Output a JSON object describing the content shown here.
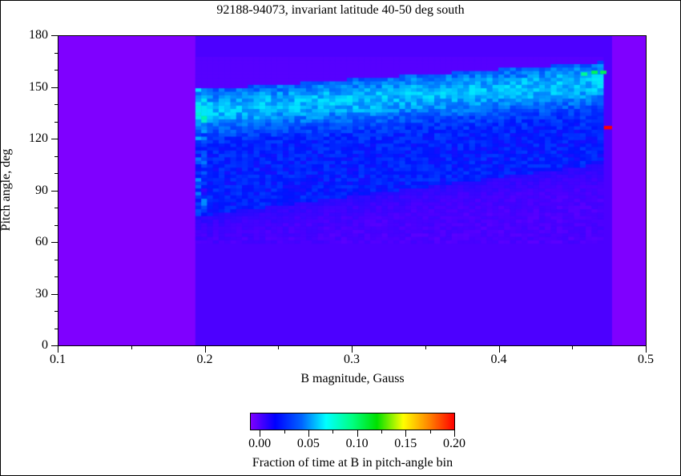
{
  "chart_data": {
    "type": "heatmap",
    "title": "92188-94073, invariant latitude 40-50 deg south",
    "xlabel": "B magnitude, Gauss",
    "ylabel": "Pitch angle, deg",
    "xlim": [
      0.1,
      0.5
    ],
    "ylim": [
      0,
      180
    ],
    "x_ticks": [
      "0.1",
      "0.2",
      "0.3",
      "0.4",
      "0.5"
    ],
    "y_ticks": [
      "0",
      "30",
      "60",
      "90",
      "120",
      "150",
      "180"
    ],
    "colorbar": {
      "label": "Fraction of time at B in pitch-angle bin",
      "range": [
        -0.01,
        0.2
      ],
      "ticks": [
        "0.00",
        "0.05",
        "0.10",
        "0.15",
        "0.20"
      ],
      "colormap": "rainbow (violet-blue-cyan-green-yellow-red)"
    },
    "regions": [
      {
        "description": "no data (background, value below 0)",
        "x_range": [
          0.1,
          0.193
        ],
        "y_range": [
          0,
          180
        ],
        "color": "#7f00ff"
      },
      {
        "description": "no data (background, value below 0)",
        "x_range": [
          0.476,
          0.5
        ],
        "y_range": [
          0,
          180
        ],
        "color": "#7f00ff"
      },
      {
        "description": "data region, mostly near zero",
        "x_range": [
          0.193,
          0.476
        ],
        "y_range": [
          0,
          180
        ],
        "color": "#4c00ff"
      },
      {
        "description": "main distribution band, ~0.02-0.06",
        "x_range": [
          0.193,
          0.47
        ],
        "y_lower_edge_deg": [
          75,
          105
        ],
        "y_upper_edge_deg": [
          148,
          165
        ]
      },
      {
        "description": "peak band ~0.05-0.06 near upper edge",
        "x_range": [
          0.2,
          0.47
        ],
        "y_deg_approx": [
          135,
          160
        ]
      },
      {
        "description": "local maximum ~0.10",
        "x": 0.465,
        "y": 158
      },
      {
        "description": "isolated hot pixel ~0.20",
        "x": 0.475,
        "y": 127
      }
    ],
    "grid": false,
    "legend": "horizontal colorbar below plot"
  }
}
